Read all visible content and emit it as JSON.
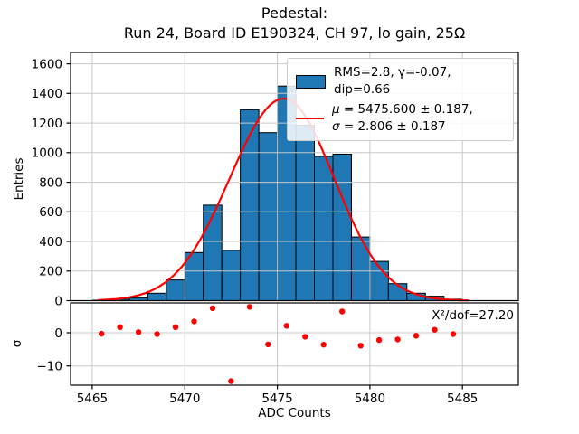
{
  "title": {
    "line1": "Pedestal:",
    "line2": "Run 24, Board ID E190324, CH 97, lo gain, 25Ω"
  },
  "colors": {
    "bar_fill": "#1f77b4",
    "bar_edge": "#000000",
    "fit_line": "#ff0000",
    "residual_dot": "#ff0000",
    "grid": "#c9c9c9",
    "spine": "#000000",
    "legend_border": "#cccccc"
  },
  "legend": {
    "entries": [
      {
        "symbol": "patch",
        "label": "RMS=2.8, γ=-0.07, dip=0.66"
      },
      {
        "symbol": "line",
        "line1": "μ = 5475.600 ± 0.187,",
        "line2": "σ = 2.806 ± 0.187"
      }
    ]
  },
  "chart_data": [
    {
      "type": "bar",
      "subtitle": "pedestal ADC histogram",
      "xlabel": "ADC Counts",
      "ylabel": "Entries",
      "bin_left_edges": [
        5465,
        5466,
        5467,
        5468,
        5469,
        5470,
        5471,
        5472,
        5473,
        5474,
        5475,
        5476,
        5477,
        5478,
        5479,
        5480,
        5481,
        5482,
        5483,
        5484
      ],
      "bin_width": 1,
      "values": [
        3,
        10,
        18,
        50,
        140,
        325,
        645,
        340,
        1290,
        1135,
        1450,
        1185,
        975,
        990,
        430,
        265,
        115,
        50,
        30,
        10
      ],
      "xlim": [
        5463.83,
        5488.02
      ],
      "ylim": [
        0,
        1677
      ],
      "xticks": [
        5465,
        5470,
        5475,
        5480,
        5485
      ],
      "yticks": [
        0,
        200,
        400,
        600,
        800,
        1000,
        1200,
        1400,
        1600
      ],
      "grid": true,
      "legend_position": "upper right",
      "fit": {
        "rms": 2.8,
        "gamma": -0.07,
        "dip": 0.66,
        "mu": 5475.6,
        "mu_err": 0.187,
        "sigma": 2.806,
        "sigma_err": 0.187,
        "amplitude": 1365,
        "draw": {
          "peak": 5475.35,
          "sigma_left": 2.92,
          "sigma_right": 2.72,
          "x_start": 5465.35,
          "x_end": 5485.4
        }
      }
    },
    {
      "type": "scatter",
      "subtitle": "fit residuals (pulls)",
      "ylabel": "σ",
      "x": [
        5465.5,
        5466.5,
        5467.5,
        5468.5,
        5469.5,
        5470.5,
        5471.5,
        5472.5,
        5473.5,
        5474.5,
        5475.5,
        5476.5,
        5477.5,
        5478.5,
        5479.5,
        5480.5,
        5481.5,
        5482.5,
        5483.5,
        5484.5
      ],
      "y": [
        -0.3,
        1.7,
        0.2,
        -0.4,
        1.7,
        3.4,
        7.4,
        -14.6,
        7.8,
        -3.5,
        2.1,
        -1.2,
        -3.6,
        6.4,
        -3.9,
        -2.2,
        -2.0,
        -0.9,
        0.9,
        -0.4
      ],
      "ylim": [
        -15.8,
        9.0
      ],
      "yticks": [
        0,
        -10
      ],
      "yticklabels": [
        "0",
        "−10"
      ],
      "grid": true,
      "annotation": "X²/dof=27.20",
      "chi2_per_dof": 27.2
    }
  ]
}
